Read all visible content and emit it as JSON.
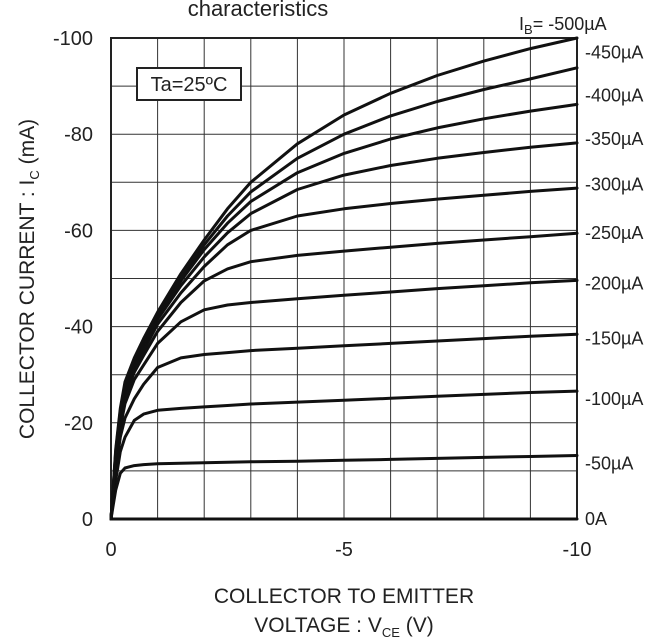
{
  "chart_data": {
    "type": "line",
    "title": "characteristics",
    "xlabel_line1": "COLLECTOR TO EMITTER",
    "xlabel_prefix": "VOLTAGE : V",
    "xlabel_sub": "CE",
    "xlabel_suffix": " (V)",
    "ylabel_prefix": "COLLECTOR CURRENT : I",
    "ylabel_sub": "C",
    "ylabel_suffix": " (mA)",
    "annotation": "Ta=25ºC",
    "xlim": [
      0,
      -10
    ],
    "ylim": [
      0,
      -100
    ],
    "x_ticks": [
      "0",
      "-5",
      "-10"
    ],
    "y_ticks": [
      "0",
      "-20",
      "-40",
      "-60",
      "-80",
      "-100"
    ],
    "grid": true,
    "x": [
      0,
      -0.05,
      -0.1,
      -0.2,
      -0.3,
      -0.5,
      -0.7,
      -1,
      -1.5,
      -2,
      -2.5,
      -3,
      -4,
      -5,
      -6,
      -7,
      -8,
      -9,
      -10
    ],
    "series": [
      {
        "name": "0A",
        "values": [
          0,
          0,
          0,
          0,
          0,
          0,
          0,
          0,
          0,
          0,
          0,
          0,
          0,
          0,
          0,
          0,
          0,
          0,
          0
        ]
      },
      {
        "name": "-50µA",
        "values": [
          0,
          -3,
          -6,
          -9.5,
          -10.6,
          -11.1,
          -11.3,
          -11.5,
          -11.6,
          -11.7,
          -11.8,
          -11.9,
          -12.0,
          -12.2,
          -12.4,
          -12.6,
          -12.8,
          -13.0,
          -13.2
        ]
      },
      {
        "name": "-100µA",
        "values": [
          0,
          -4,
          -8,
          -14,
          -17,
          -20.5,
          -21.8,
          -22.6,
          -23.0,
          -23.3,
          -23.6,
          -23.9,
          -24.3,
          -24.7,
          -25.1,
          -25.5,
          -25.9,
          -26.3,
          -26.6
        ]
      },
      {
        "name": "-150µA",
        "values": [
          0,
          -5,
          -10,
          -17,
          -21,
          -25,
          -28,
          -31.5,
          -33.5,
          -34.2,
          -34.6,
          -35.0,
          -35.5,
          -36.0,
          -36.5,
          -37.0,
          -37.5,
          -38.0,
          -38.4
        ]
      },
      {
        "name": "-200µA",
        "values": [
          0,
          -5.5,
          -11,
          -19,
          -24,
          -29,
          -32,
          -36.5,
          -41,
          -43.5,
          -44.5,
          -45.0,
          -45.8,
          -46.5,
          -47.2,
          -47.9,
          -48.5,
          -49.1,
          -49.6
        ]
      },
      {
        "name": "-250µA",
        "values": [
          0,
          -6,
          -12,
          -20,
          -25.5,
          -30.5,
          -34,
          -39,
          -45,
          -49.5,
          -52,
          -53.5,
          -54.8,
          -55.7,
          -56.5,
          -57.3,
          -58.0,
          -58.7,
          -59.4
        ]
      },
      {
        "name": "-300µA",
        "values": [
          0,
          -6,
          -12.5,
          -21,
          -26.5,
          -31.5,
          -35,
          -40.5,
          -47,
          -52.5,
          -57,
          -60,
          -63,
          -64.5,
          -65.6,
          -66.5,
          -67.3,
          -68.1,
          -68.8
        ]
      },
      {
        "name": "-350µA",
        "values": [
          0,
          -6.5,
          -13,
          -21.5,
          -27,
          -32,
          -36,
          -41.5,
          -48.5,
          -54.5,
          -59.5,
          -63.5,
          -68.5,
          -71.5,
          -73.5,
          -75,
          -76.2,
          -77.3,
          -78.2
        ]
      },
      {
        "name": "-400µA",
        "values": [
          0,
          -6.5,
          -13.5,
          -22,
          -27.5,
          -32.5,
          -36.5,
          -42,
          -49.5,
          -56,
          -61.5,
          -66,
          -72,
          -76,
          -79,
          -81.3,
          -83.2,
          -84.8,
          -86.2
        ]
      },
      {
        "name": "-450µA",
        "values": [
          0,
          -7,
          -14,
          -22.5,
          -28,
          -33,
          -37,
          -42.5,
          -50,
          -57,
          -63,
          -68,
          -75,
          -80,
          -83.8,
          -86.8,
          -89.3,
          -91.5,
          -93.8
        ]
      },
      {
        "name": "-500µA",
        "values": [
          0,
          -7,
          -14.5,
          -23,
          -28.5,
          -33.5,
          -37.5,
          -43,
          -51,
          -58,
          -64.5,
          -70,
          -78,
          -84,
          -88.5,
          -92.2,
          -95.2,
          -97.8,
          -100
        ]
      }
    ],
    "curve_labels": [
      {
        "name": "0A",
        "at_value": 0
      },
      {
        "name": "-50µA",
        "at_value": -11.5
      },
      {
        "name": "-100µA",
        "at_value": -25
      },
      {
        "name": "-150µA",
        "at_value": -37.5
      },
      {
        "name": "-200µA",
        "at_value": -49
      },
      {
        "name": "-250µA",
        "at_value": -59.5
      },
      {
        "name": "-300µA",
        "at_value": -69.5
      },
      {
        "name": "-350µA",
        "at_value": -79
      },
      {
        "name": "-400µA",
        "at_value": -88
      },
      {
        "name": "-450µA",
        "at_value": -97
      },
      {
        "name_prefix": "I",
        "name_sub": "B",
        "name_suffix": "= -500µA",
        "at_value": -103
      }
    ]
  }
}
